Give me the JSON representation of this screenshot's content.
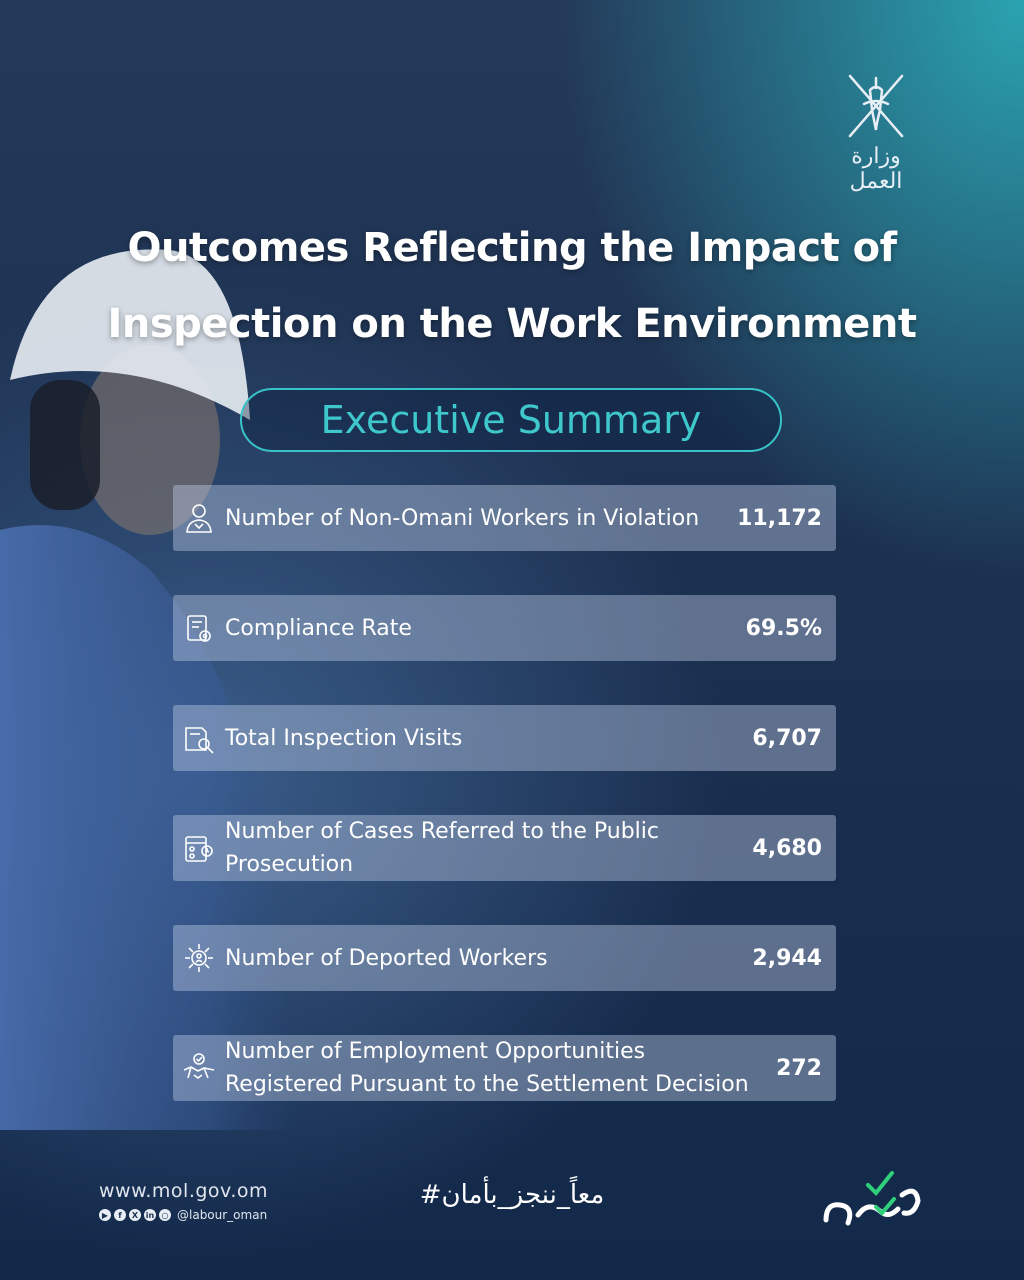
{
  "ministry": {
    "arabic_name": "وزارة العمل"
  },
  "title": {
    "line1": "Outcomes Reflecting the Impact of",
    "line2": "Inspection on the Work Environment"
  },
  "section_pill": "Executive Summary",
  "stats": [
    {
      "label": "Number of Non-Omani Workers in Violation",
      "value": "11,172",
      "icon": "worker-badge-icon"
    },
    {
      "label": "Compliance Rate",
      "value": "69.5%",
      "icon": "clipboard-gear-icon"
    },
    {
      "label": "Total Inspection Visits",
      "value": "6,707",
      "icon": "document-search-icon"
    },
    {
      "label": "Number of Cases Referred to the Public Prosecution",
      "value": "4,680",
      "icon": "calendar-people-icon"
    },
    {
      "label": "Number of Deported Workers",
      "value": "2,944",
      "icon": "person-network-icon"
    },
    {
      "label_line1": "Number of Employment Opportunities",
      "label_line2": "Registered Pursuant to the Settlement Decision",
      "value": "272",
      "icon": "handshake-check-icon"
    }
  ],
  "footer": {
    "url": "www.mol.gov.om",
    "handle": "@labour_oman",
    "hashtag": "#معاً_ننجز_بأمان",
    "social_icons": [
      "youtube-icon",
      "facebook-icon",
      "x-icon",
      "linkedin-icon",
      "instagram-icon"
    ]
  },
  "colors": {
    "accent": "#3fc8cc",
    "row_bg": "#bfcde6",
    "bg_dark": "#13294a",
    "bg_teal": "#2aa3b0"
  }
}
